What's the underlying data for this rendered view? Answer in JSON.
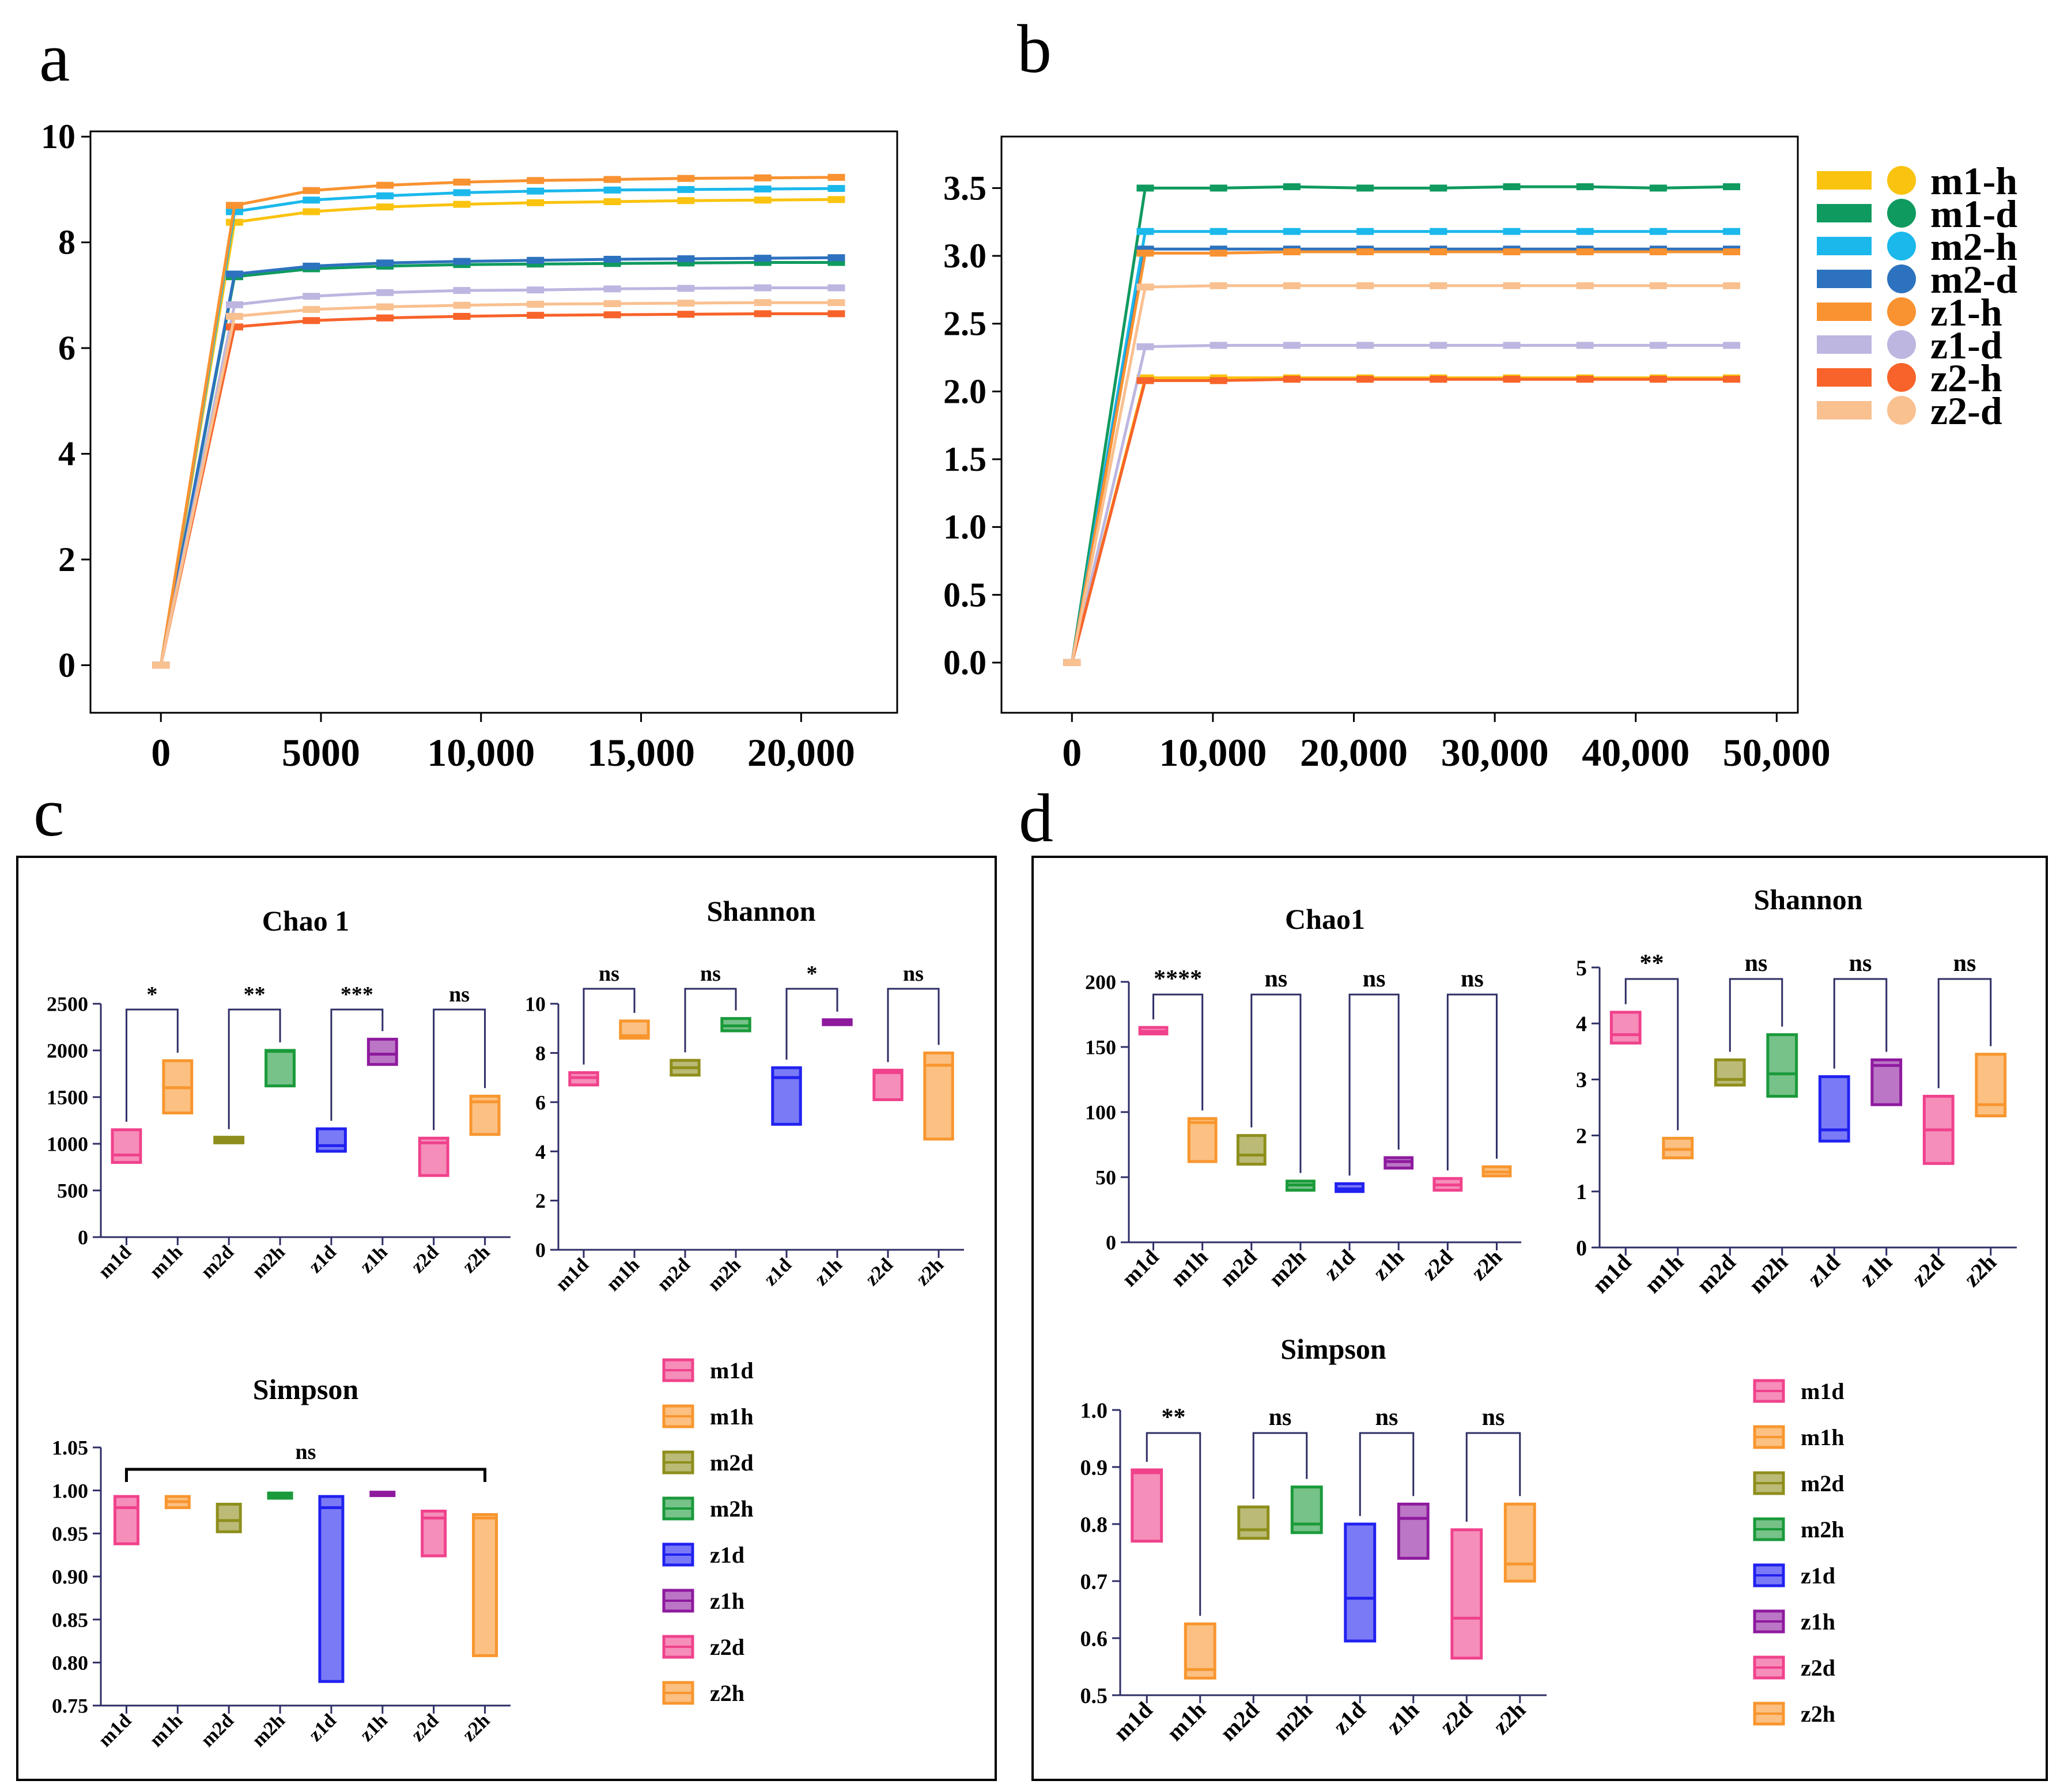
{
  "figure": {
    "panel_letters": [
      "a",
      "b",
      "c",
      "d"
    ]
  },
  "chart_data": [
    {
      "id": "a",
      "type": "line",
      "title": "",
      "xlabel": "",
      "ylabel": "",
      "xlim": [
        -2200,
        23000
      ],
      "ylim": [
        -0.9,
        10.1
      ],
      "x_ticks": [
        0,
        5000,
        10000,
        15000,
        20000
      ],
      "x_tick_labels": [
        "0",
        "5000",
        "10,000",
        "15,000",
        "20,000"
      ],
      "y_ticks": [
        0,
        2,
        4,
        6,
        8,
        10
      ],
      "y_tick_labels": [
        "0",
        "2",
        "4",
        "6",
        "8",
        "10"
      ],
      "x": [
        0,
        2300,
        4700,
        7000,
        9400,
        11700,
        14100,
        16400,
        18800,
        21100
      ],
      "series": [
        {
          "name": "m1-h",
          "color": "#F9C30F",
          "values": [
            0,
            8.38,
            8.58,
            8.67,
            8.72,
            8.75,
            8.77,
            8.79,
            8.8,
            8.81
          ]
        },
        {
          "name": "m1-d",
          "color": "#0F9A5F",
          "values": [
            0,
            7.35,
            7.5,
            7.55,
            7.58,
            7.59,
            7.6,
            7.61,
            7.62,
            7.62
          ]
        },
        {
          "name": "m2-h",
          "color": "#1BB8EC",
          "values": [
            0,
            8.58,
            8.8,
            8.88,
            8.94,
            8.97,
            8.99,
            9.0,
            9.01,
            9.02
          ]
        },
        {
          "name": "m2-d",
          "color": "#2D72BE",
          "values": [
            0,
            7.4,
            7.55,
            7.61,
            7.64,
            7.66,
            7.68,
            7.69,
            7.7,
            7.71
          ]
        },
        {
          "name": "z1-h",
          "color": "#F99230",
          "values": [
            0,
            8.7,
            8.98,
            9.08,
            9.14,
            9.17,
            9.19,
            9.21,
            9.22,
            9.23
          ]
        },
        {
          "name": "z1-d",
          "color": "#BDB6E0",
          "values": [
            0,
            6.82,
            6.98,
            7.05,
            7.09,
            7.1,
            7.12,
            7.13,
            7.14,
            7.14
          ]
        },
        {
          "name": "z2-h",
          "color": "#F7632A",
          "values": [
            0,
            6.4,
            6.52,
            6.57,
            6.6,
            6.62,
            6.63,
            6.64,
            6.65,
            6.65
          ]
        },
        {
          "name": "z2-d",
          "color": "#F9C090",
          "values": [
            0,
            6.6,
            6.73,
            6.78,
            6.81,
            6.83,
            6.84,
            6.85,
            6.86,
            6.86
          ]
        }
      ]
    },
    {
      "id": "b",
      "type": "line",
      "title": "",
      "xlabel": "",
      "ylabel": "",
      "xlim": [
        -5000,
        51500
      ],
      "ylim": [
        -0.37,
        3.88
      ],
      "x_ticks": [
        0,
        10000,
        20000,
        30000,
        40000,
        50000
      ],
      "x_tick_labels": [
        "0",
        "10,000",
        "20,000",
        "30,000",
        "40,000",
        "50,000"
      ],
      "y_ticks": [
        0,
        0.5,
        1,
        1.5,
        2,
        2.5,
        3,
        3.5
      ],
      "y_tick_labels": [
        "0.0",
        "0.5",
        "1.0",
        "1.5",
        "2.0",
        "2.5",
        "3.0",
        "3.5"
      ],
      "x": [
        0,
        5200,
        10400,
        15600,
        20800,
        26000,
        31200,
        36400,
        41600,
        46800
      ],
      "series": [
        {
          "name": "m1-h",
          "color": "#F9C30F",
          "values": [
            0,
            2.1,
            2.1,
            2.1,
            2.1,
            2.1,
            2.1,
            2.1,
            2.1,
            2.1
          ]
        },
        {
          "name": "m1-d",
          "color": "#0F9A5F",
          "values": [
            0,
            3.5,
            3.5,
            3.51,
            3.5,
            3.5,
            3.51,
            3.51,
            3.5,
            3.51
          ]
        },
        {
          "name": "m2-h",
          "color": "#1BB8EC",
          "values": [
            0,
            3.18,
            3.18,
            3.18,
            3.18,
            3.18,
            3.18,
            3.18,
            3.18,
            3.18
          ]
        },
        {
          "name": "m2-d",
          "color": "#2D72BE",
          "values": [
            0,
            3.05,
            3.05,
            3.05,
            3.05,
            3.05,
            3.05,
            3.05,
            3.05,
            3.05
          ]
        },
        {
          "name": "z1-h",
          "color": "#F99230",
          "values": [
            0,
            3.02,
            3.02,
            3.03,
            3.03,
            3.03,
            3.03,
            3.03,
            3.03,
            3.03
          ]
        },
        {
          "name": "z1-d",
          "color": "#BDB6E0",
          "values": [
            0,
            2.33,
            2.34,
            2.34,
            2.34,
            2.34,
            2.34,
            2.34,
            2.34,
            2.34
          ]
        },
        {
          "name": "z2-h",
          "color": "#F7632A",
          "values": [
            0,
            2.08,
            2.08,
            2.09,
            2.09,
            2.09,
            2.09,
            2.09,
            2.09,
            2.09
          ]
        },
        {
          "name": "z2-d",
          "color": "#F9C090",
          "values": [
            0,
            2.77,
            2.78,
            2.78,
            2.78,
            2.78,
            2.78,
            2.78,
            2.78,
            2.78
          ]
        }
      ]
    },
    {
      "id": "c-chao1",
      "type": "box",
      "title": "Chao 1",
      "categories": [
        "m1d",
        "m1h",
        "m2d",
        "m2h",
        "z1d",
        "z1h",
        "z2d",
        "z2h"
      ],
      "ylim": [
        0,
        2500
      ],
      "y_ticks": [
        0,
        500,
        1000,
        1500,
        2000,
        2500
      ],
      "y_tick_labels": [
        "0",
        "500",
        "1000",
        "1500",
        "2000",
        "2500"
      ],
      "boxes": [
        {
          "q1": 800,
          "median": 880,
          "q3": 1150
        },
        {
          "q1": 1330,
          "median": 1600,
          "q3": 1890
        },
        {
          "q1": 1010,
          "median": 1040,
          "q3": 1070
        },
        {
          "q1": 1620,
          "median": 1990,
          "q3": 2000
        },
        {
          "q1": 920,
          "median": 980,
          "q3": 1160
        },
        {
          "q1": 1850,
          "median": 1960,
          "q3": 2120
        },
        {
          "q1": 660,
          "median": 1010,
          "q3": 1060
        },
        {
          "q1": 1100,
          "median": 1450,
          "q3": 1510
        }
      ],
      "significance": [
        {
          "pair": [
            0,
            1
          ],
          "label": "*"
        },
        {
          "pair": [
            2,
            3
          ],
          "label": "**"
        },
        {
          "pair": [
            4,
            5
          ],
          "label": "***"
        },
        {
          "pair": [
            6,
            7
          ],
          "label": "ns"
        }
      ]
    },
    {
      "id": "c-shannon",
      "type": "box",
      "title": "Shannon",
      "categories": [
        "m1d",
        "m1h",
        "m2d",
        "m2h",
        "z1d",
        "z1h",
        "z2d",
        "z2h"
      ],
      "ylim": [
        0,
        10
      ],
      "y_ticks": [
        0,
        2,
        4,
        6,
        8,
        10
      ],
      "y_tick_labels": [
        "0",
        "2",
        "4",
        "6",
        "8",
        "10"
      ],
      "boxes": [
        {
          "q1": 6.7,
          "median": 7.0,
          "q3": 7.2
        },
        {
          "q1": 8.6,
          "median": 8.7,
          "q3": 9.3
        },
        {
          "q1": 7.1,
          "median": 7.4,
          "q3": 7.7
        },
        {
          "q1": 8.9,
          "median": 9.1,
          "q3": 9.4
        },
        {
          "q1": 5.1,
          "median": 7.0,
          "q3": 7.4
        },
        {
          "q1": 9.15,
          "median": 9.25,
          "q3": 9.35
        },
        {
          "q1": 6.1,
          "median": 7.2,
          "q3": 7.3
        },
        {
          "q1": 4.5,
          "median": 7.5,
          "q3": 8.0
        }
      ],
      "significance": [
        {
          "pair": [
            0,
            1
          ],
          "label": "ns"
        },
        {
          "pair": [
            2,
            3
          ],
          "label": "ns"
        },
        {
          "pair": [
            4,
            5
          ],
          "label": "*"
        },
        {
          "pair": [
            6,
            7
          ],
          "label": "ns"
        }
      ]
    },
    {
      "id": "c-simpson",
      "type": "box",
      "title": "Simpson",
      "categories": [
        "m1d",
        "m1h",
        "m2d",
        "m2h",
        "z1d",
        "z1h",
        "z2d",
        "z2h"
      ],
      "ylim": [
        0.75,
        1.05
      ],
      "y_ticks": [
        0.75,
        0.8,
        0.85,
        0.9,
        0.95,
        1.0,
        1.05
      ],
      "y_tick_labels": [
        "0.75",
        "0.80",
        "0.85",
        "0.90",
        "0.95",
        "1.00",
        "1.05"
      ],
      "boxes": [
        {
          "q1": 0.938,
          "median": 0.98,
          "q3": 0.993
        },
        {
          "q1": 0.98,
          "median": 0.987,
          "q3": 0.993
        },
        {
          "q1": 0.952,
          "median": 0.965,
          "q3": 0.984
        },
        {
          "q1": 0.991,
          "median": 0.994,
          "q3": 0.997
        },
        {
          "q1": 0.778,
          "median": 0.98,
          "q3": 0.993
        },
        {
          "q1": 0.994,
          "median": 0.996,
          "q3": 0.998
        },
        {
          "q1": 0.924,
          "median": 0.968,
          "q3": 0.976
        },
        {
          "q1": 0.808,
          "median": 0.968,
          "q3": 0.972
        }
      ],
      "significance": [
        {
          "pair": [
            0,
            7
          ],
          "label": "ns"
        }
      ]
    },
    {
      "id": "d-chao1",
      "type": "box",
      "title": "Chao1",
      "categories": [
        "m1d",
        "m1h",
        "m2d",
        "m2h",
        "z1d",
        "z1h",
        "z2d",
        "z2h"
      ],
      "ylim": [
        0,
        200
      ],
      "y_ticks": [
        0,
        50,
        100,
        150,
        200
      ],
      "y_tick_labels": [
        "0",
        "50",
        "100",
        "150",
        "200"
      ],
      "boxes": [
        {
          "q1": 160,
          "median": 162,
          "q3": 165
        },
        {
          "q1": 62,
          "median": 92,
          "q3": 95
        },
        {
          "q1": 60,
          "median": 67,
          "q3": 82
        },
        {
          "q1": 40,
          "median": 44,
          "q3": 47
        },
        {
          "q1": 39,
          "median": 41,
          "q3": 45
        },
        {
          "q1": 57,
          "median": 62,
          "q3": 65
        },
        {
          "q1": 40,
          "median": 44,
          "q3": 49
        },
        {
          "q1": 51,
          "median": 54,
          "q3": 58
        }
      ],
      "significance": [
        {
          "pair": [
            0,
            1
          ],
          "label": "****"
        },
        {
          "pair": [
            2,
            3
          ],
          "label": "ns"
        },
        {
          "pair": [
            4,
            5
          ],
          "label": "ns"
        },
        {
          "pair": [
            6,
            7
          ],
          "label": "ns"
        }
      ]
    },
    {
      "id": "d-shannon",
      "type": "box",
      "title": "Shannon",
      "categories": [
        "m1d",
        "m1h",
        "m2d",
        "m2h",
        "z1d",
        "z1h",
        "z2d",
        "z2h"
      ],
      "ylim": [
        0,
        5
      ],
      "y_ticks": [
        0,
        1,
        2,
        3,
        4,
        5
      ],
      "y_tick_labels": [
        "0",
        "1",
        "2",
        "3",
        "4",
        "5"
      ],
      "boxes": [
        {
          "q1": 3.65,
          "median": 3.8,
          "q3": 4.2
        },
        {
          "q1": 1.6,
          "median": 1.75,
          "q3": 1.95
        },
        {
          "q1": 2.9,
          "median": 3.0,
          "q3": 3.35
        },
        {
          "q1": 2.7,
          "median": 3.1,
          "q3": 3.8
        },
        {
          "q1": 1.9,
          "median": 2.1,
          "q3": 3.05
        },
        {
          "q1": 2.55,
          "median": 3.25,
          "q3": 3.35
        },
        {
          "q1": 1.5,
          "median": 2.1,
          "q3": 2.7
        },
        {
          "q1": 2.35,
          "median": 2.55,
          "q3": 3.45
        }
      ],
      "significance": [
        {
          "pair": [
            0,
            1
          ],
          "label": "**"
        },
        {
          "pair": [
            2,
            3
          ],
          "label": "ns"
        },
        {
          "pair": [
            4,
            5
          ],
          "label": "ns"
        },
        {
          "pair": [
            6,
            7
          ],
          "label": "ns"
        }
      ]
    },
    {
      "id": "d-simpson",
      "type": "box",
      "title": "Simpson",
      "categories": [
        "m1d",
        "m1h",
        "m2d",
        "m2h",
        "z1d",
        "z1h",
        "z2d",
        "z2h"
      ],
      "ylim": [
        0.5,
        1.0
      ],
      "y_ticks": [
        0.5,
        0.6,
        0.7,
        0.8,
        0.9,
        1.0
      ],
      "y_tick_labels": [
        "0.5",
        "0.6",
        "0.7",
        "0.8",
        "0.9",
        "1.0"
      ],
      "boxes": [
        {
          "q1": 0.77,
          "median": 0.89,
          "q3": 0.895
        },
        {
          "q1": 0.53,
          "median": 0.545,
          "q3": 0.625
        },
        {
          "q1": 0.775,
          "median": 0.79,
          "q3": 0.83
        },
        {
          "q1": 0.785,
          "median": 0.8,
          "q3": 0.865
        },
        {
          "q1": 0.595,
          "median": 0.67,
          "q3": 0.8
        },
        {
          "q1": 0.74,
          "median": 0.81,
          "q3": 0.835
        },
        {
          "q1": 0.565,
          "median": 0.635,
          "q3": 0.79
        },
        {
          "q1": 0.7,
          "median": 0.73,
          "q3": 0.835
        }
      ],
      "significance": [
        {
          "pair": [
            0,
            1
          ],
          "label": "**"
        },
        {
          "pair": [
            2,
            3
          ],
          "label": "ns"
        },
        {
          "pair": [
            4,
            5
          ],
          "label": "ns"
        },
        {
          "pair": [
            6,
            7
          ],
          "label": "ns"
        }
      ]
    }
  ],
  "legend_ab": [
    {
      "label": "m1-h",
      "color": "#F9C30F"
    },
    {
      "label": "m1-d",
      "color": "#0F9A5F"
    },
    {
      "label": "m2-h",
      "color": "#1BB8EC"
    },
    {
      "label": "m2-d",
      "color": "#2D72BE"
    },
    {
      "label": "z1-h",
      "color": "#F99230"
    },
    {
      "label": "z1-d",
      "color": "#BDB6E0"
    },
    {
      "label": "z2-h",
      "color": "#F7632A"
    },
    {
      "label": "z2-d",
      "color": "#F9C090"
    }
  ],
  "legend_cd": [
    {
      "label": "m1d",
      "color": "#F0428C"
    },
    {
      "label": "m1h",
      "color": "#F8962E"
    },
    {
      "label": "m2d",
      "color": "#8E8E1C"
    },
    {
      "label": "m2h",
      "color": "#1A9A3A"
    },
    {
      "label": "z1d",
      "color": "#2121F0"
    },
    {
      "label": "z1h",
      "color": "#8E1A9E"
    },
    {
      "label": "z2d",
      "color": "#F0428C"
    },
    {
      "label": "z2h",
      "color": "#F8962E"
    }
  ]
}
